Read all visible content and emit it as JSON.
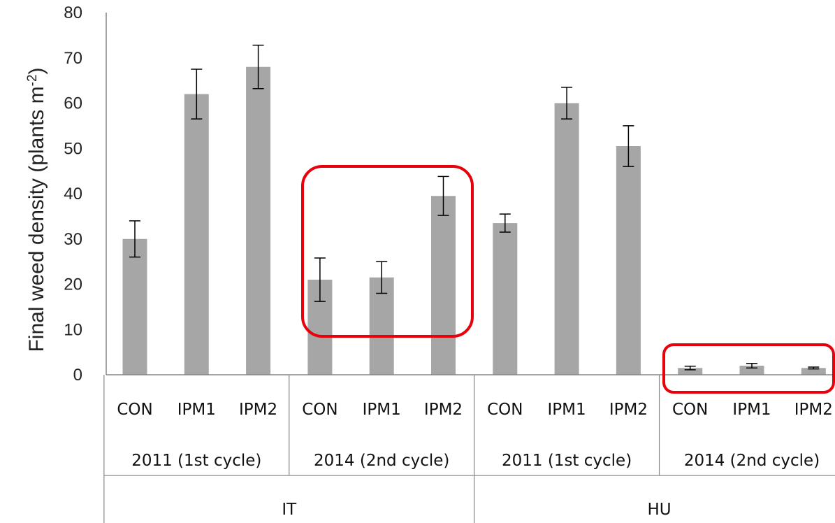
{
  "chart_data": {
    "type": "bar",
    "ylabel": "Final weed density (plants m",
    "ylabel_sup": "-2",
    "ylabel_close": ")",
    "ylim": [
      0,
      80
    ],
    "yticks": [
      "0",
      "10",
      "20",
      "30",
      "40",
      "50",
      "60",
      "70",
      "80"
    ],
    "grid": false,
    "categories": [
      "CON",
      "IPM1",
      "IPM2",
      "CON",
      "IPM1",
      "IPM2",
      "CON",
      "IPM1",
      "IPM2",
      "CON",
      "IPM1",
      "IPM2"
    ],
    "values": [
      30,
      62,
      68,
      21,
      21.5,
      39.5,
      33.5,
      60,
      50.5,
      1.5,
      2,
      1.5
    ],
    "errors": [
      4,
      5.5,
      4.8,
      4.8,
      3.5,
      4.3,
      2,
      3.5,
      4.5,
      0.4,
      0.5,
      0.2
    ],
    "years": [
      "2011 (1st cycle)",
      "2014 (2nd cycle)",
      "2011 (1st cycle)",
      "2014 (2nd cycle)"
    ],
    "countries": [
      "IT",
      "HU"
    ],
    "highlights": [
      {
        "group": "2014 (2nd cycle)",
        "country": "IT"
      },
      {
        "group": "2014 (2nd cycle)",
        "country": "HU"
      }
    ],
    "colors": {
      "bar": "#a6a6a6",
      "error": "#000000",
      "axis": "#868686",
      "highlight": "#e8000b"
    }
  }
}
